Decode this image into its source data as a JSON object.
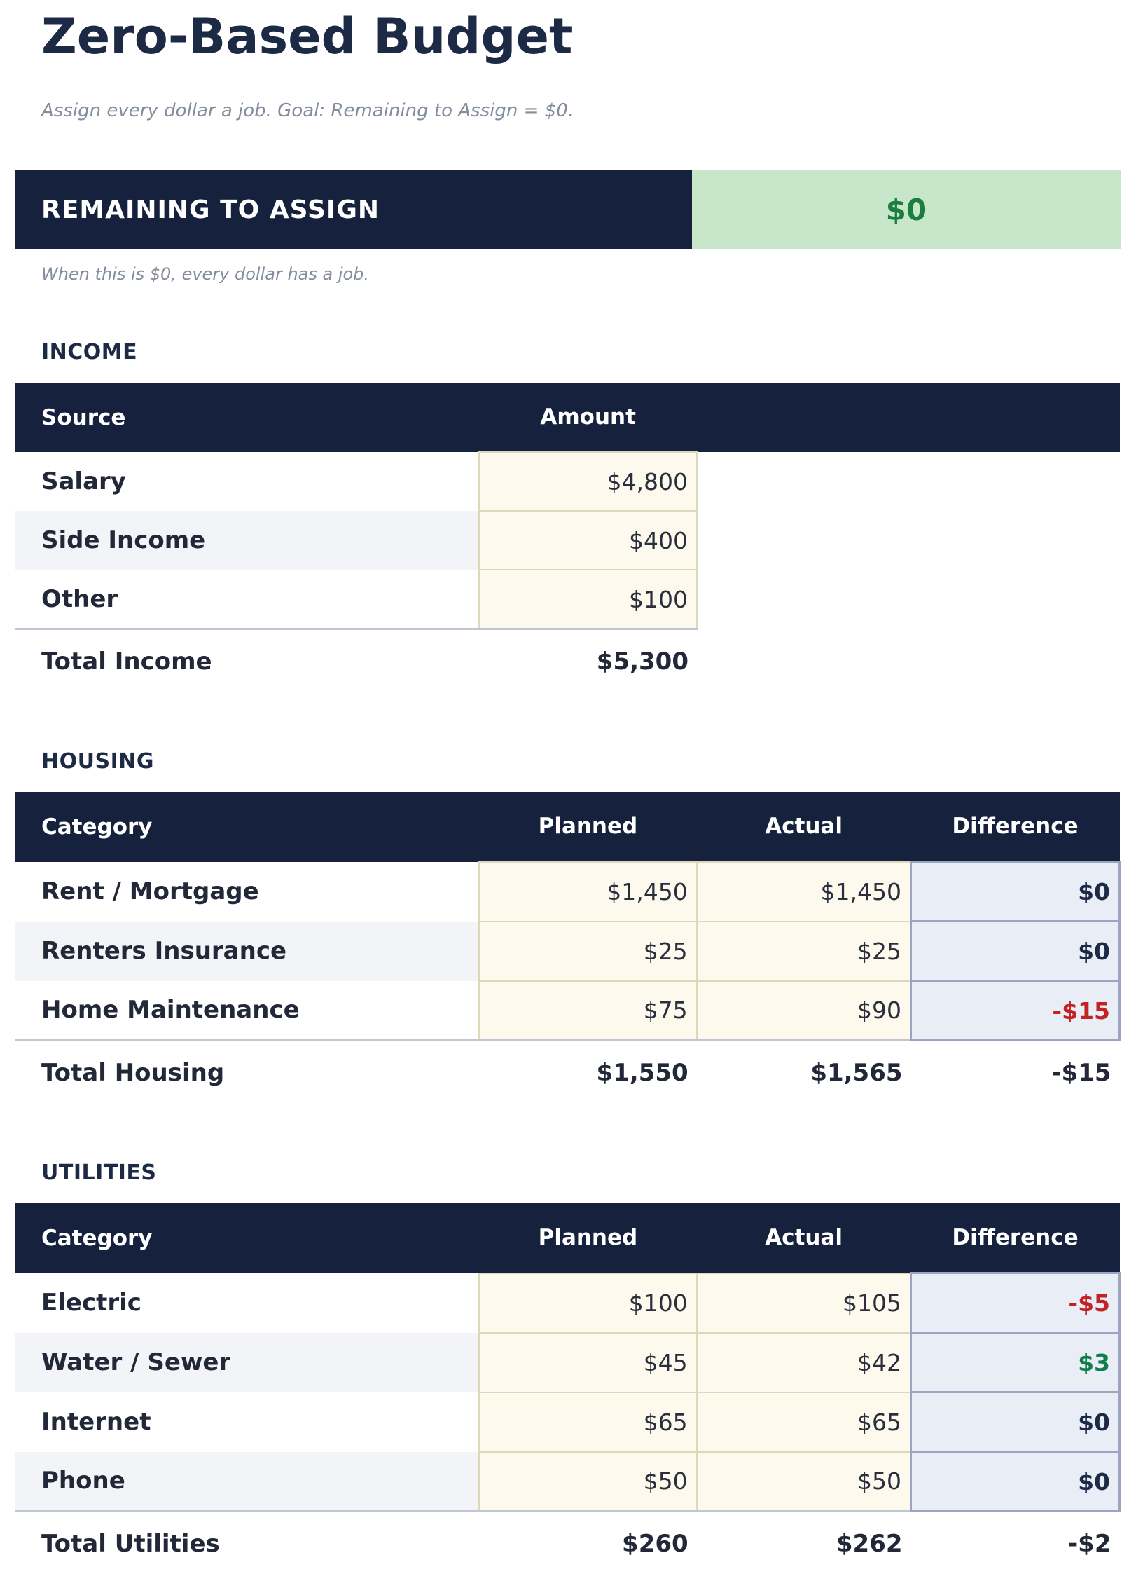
{
  "header": {
    "title": "Zero-Based Budget",
    "subtitle": "Assign every dollar a job. Goal: Remaining to Assign = $0."
  },
  "remaining": {
    "label": "REMAINING TO ASSIGN",
    "value": "$0",
    "note": "When this is $0, every dollar has a job."
  },
  "colors": {
    "navy_header": "#16223d",
    "title_text": "#1d2a45",
    "muted_italic": "#838d9c",
    "remaining_value_bg": "#c8e6c9",
    "remaining_value_text": "#1b7d3f",
    "row_stripe": "#f2f4f7",
    "amount_cell_bg": "#fdf9ec",
    "amount_cell_border": "#ded8ba",
    "difference_cell_bg": "#e9edf6",
    "difference_cell_border": "#9ba5c0",
    "negative_text": "#c22322",
    "positive_text": "#0e7f4b",
    "total_rule": "#bfc6d4"
  },
  "sections": [
    {
      "id": "income",
      "heading": "INCOME",
      "columns": [
        "Source",
        "Amount"
      ],
      "rows": [
        {
          "label": "Salary",
          "values": [
            "$4,800"
          ]
        },
        {
          "label": "Side Income",
          "values": [
            "$400"
          ]
        },
        {
          "label": "Other",
          "values": [
            "$100"
          ]
        }
      ],
      "total": {
        "label": "Total Income",
        "values": [
          "$5,300"
        ]
      }
    },
    {
      "id": "housing",
      "heading": "HOUSING",
      "columns": [
        "Category",
        "Planned",
        "Actual",
        "Difference"
      ],
      "rows": [
        {
          "label": "Rent / Mortgage",
          "values": [
            "$1,450",
            "$1,450"
          ],
          "difference": "$0",
          "diff_sign": "zero"
        },
        {
          "label": "Renters Insurance",
          "values": [
            "$25",
            "$25"
          ],
          "difference": "$0",
          "diff_sign": "zero"
        },
        {
          "label": "Home Maintenance",
          "values": [
            "$75",
            "$90"
          ],
          "difference": "-$15",
          "diff_sign": "negative"
        }
      ],
      "total": {
        "label": "Total Housing",
        "values": [
          "$1,550",
          "$1,565"
        ],
        "difference": "-$15",
        "diff_sign": "negative"
      }
    },
    {
      "id": "utilities",
      "heading": "UTILITIES",
      "columns": [
        "Category",
        "Planned",
        "Actual",
        "Difference"
      ],
      "rows": [
        {
          "label": "Electric",
          "values": [
            "$100",
            "$105"
          ],
          "difference": "-$5",
          "diff_sign": "negative"
        },
        {
          "label": "Water / Sewer",
          "values": [
            "$45",
            "$42"
          ],
          "difference": "$3",
          "diff_sign": "positive"
        },
        {
          "label": "Internet",
          "values": [
            "$65",
            "$65"
          ],
          "difference": "$0",
          "diff_sign": "zero"
        },
        {
          "label": "Phone",
          "values": [
            "$50",
            "$50"
          ],
          "difference": "$0",
          "diff_sign": "zero"
        }
      ],
      "total": {
        "label": "Total Utilities",
        "values": [
          "$260",
          "$262"
        ],
        "difference": "-$2",
        "diff_sign": "negative"
      }
    }
  ]
}
